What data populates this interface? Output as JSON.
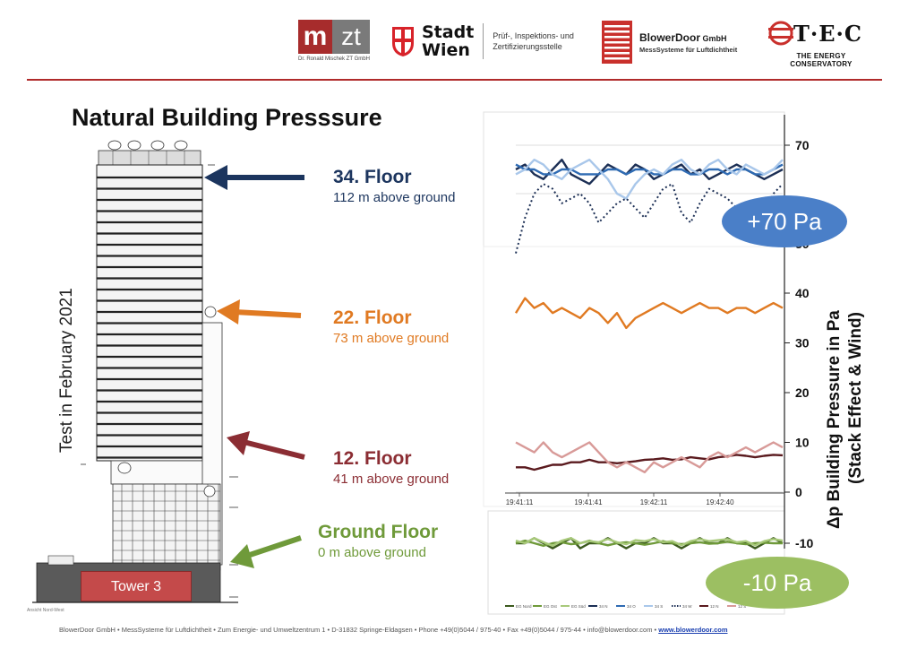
{
  "header": {
    "mzt": {
      "m": "m",
      "zt": "zt",
      "sub": "Dr. Ronald Mischek ZT GmbH"
    },
    "wien": {
      "line1": "Stadt",
      "line2": "Wien",
      "desc1": "Prüf-, Inspektions- und",
      "desc2": "Zertifizierungsstelle"
    },
    "blowerdoor": {
      "name": "BlowerDoor",
      "gmbh": " GmbH",
      "sub": "MessSysteme für Luftdichtheit"
    },
    "tec": {
      "letters": "T·E·C",
      "sub": "THE ENERGY CONSERVATORY"
    }
  },
  "title": "Natural Building Presssure",
  "side_label": "Test in February 2021",
  "tower_label": "Tower 3",
  "tower_caption": "Ansicht Nord-West",
  "floors": [
    {
      "name": "34. Floor",
      "height": "112 m above ground",
      "color": "#1c355e"
    },
    {
      "name": "22. Floor",
      "height": "73 m above ground",
      "color": "#e07a22"
    },
    {
      "name": "12. Floor",
      "height": "41 m above ground",
      "color": "#8b2d33"
    },
    {
      "name": "Ground Floor",
      "height": "0 m above ground",
      "color": "#6f9a3a"
    }
  ],
  "callouts": {
    "top": "+70 Pa",
    "bottom": "-10 Pa"
  },
  "footer": {
    "text": "BlowerDoor GmbH • MessSysteme für Luftdichtheit • Zum Energie- und Umweltzentrum 1 • D-31832 Springe-Eldagsen • Phone +49(0)5044 / 975-40 • Fax +49(0)5044 / 975-44 • info@blowerdoor.com •",
    "link": "www.blowerdoor.com"
  },
  "chart_data": {
    "type": "line",
    "ylabel_line1": "Δp Building Pressure  in Pa",
    "ylabel_line2": "(Stack Effect & Wind)",
    "ylim": [
      -10,
      70
    ],
    "yticks": [
      "70",
      "40",
      "30",
      "20",
      "10",
      "0",
      "-10"
    ],
    "yticks_visible_partial": "50",
    "xticks": [
      "19:41:11",
      "19:41:41",
      "19:42:11",
      "19:42:40"
    ],
    "legend": [
      "EG Nord",
      "EG Ost",
      "EG Süd",
      "34 N",
      "34 O",
      "34 S",
      "34 W",
      "12 N",
      "12 S",
      "22 S"
    ],
    "series": [
      {
        "name": "34 N",
        "color": "#1c2f55",
        "style": "solid",
        "values": [
          65,
          66,
          64,
          63,
          65,
          67,
          64,
          63,
          62,
          64,
          66,
          65,
          64,
          66,
          65,
          63,
          64,
          65,
          66,
          64,
          65,
          63,
          64,
          65,
          66,
          65,
          64,
          63,
          64,
          65
        ]
      },
      {
        "name": "34 O",
        "color": "#2f6bb3",
        "style": "solid",
        "values": [
          66,
          65,
          65,
          64,
          64,
          65,
          65,
          64,
          64,
          64,
          65,
          65,
          64,
          65,
          65,
          64,
          64,
          65,
          65,
          64,
          64,
          65,
          65,
          64,
          65,
          65,
          64,
          64,
          65,
          66
        ]
      },
      {
        "name": "34 S",
        "color": "#a9c7ea",
        "style": "solid",
        "values": [
          64,
          65,
          67,
          66,
          64,
          63,
          65,
          66,
          67,
          65,
          63,
          60,
          59,
          62,
          64,
          65,
          64,
          66,
          67,
          65,
          64,
          66,
          67,
          65,
          64,
          66,
          65,
          64,
          65,
          67
        ]
      },
      {
        "name": "34 W",
        "color": "#1c2f55",
        "style": "dotted",
        "values": [
          48,
          55,
          60,
          62,
          61,
          58,
          59,
          60,
          58,
          54,
          56,
          58,
          59,
          57,
          55,
          58,
          61,
          62,
          56,
          54,
          58,
          61,
          60,
          59,
          57,
          58,
          55,
          56,
          60,
          62
        ]
      },
      {
        "name": "22 S",
        "color": "#e07a22",
        "style": "solid",
        "values": [
          36,
          39,
          37,
          38,
          36,
          37,
          36,
          35,
          37,
          36,
          34,
          36,
          33,
          35,
          36,
          37,
          38,
          37,
          36,
          37,
          38,
          37,
          37,
          36,
          37,
          37,
          36,
          37,
          38,
          37
        ]
      },
      {
        "name": "12 N",
        "color": "#5a1a1e",
        "style": "solid",
        "values": [
          5,
          5,
          4.5,
          5,
          5.5,
          5.5,
          6,
          6,
          6.5,
          6,
          6,
          5.8,
          6,
          6.2,
          6.5,
          6.6,
          6.8,
          6.5,
          6.6,
          7,
          6.8,
          6.6,
          7,
          7.2,
          7.5,
          7.3,
          7,
          7.3,
          7.5,
          7.4
        ]
      },
      {
        "name": "12 S",
        "color": "#d89a98",
        "style": "solid",
        "values": [
          10,
          9,
          8,
          10,
          8,
          7,
          8,
          9,
          10,
          8,
          6,
          5,
          6,
          5,
          4,
          6,
          5,
          6,
          7,
          6,
          5,
          7,
          8,
          7,
          8,
          9,
          8,
          9,
          10,
          9
        ]
      },
      {
        "name": "EG Nord",
        "color": "#3c5a1e",
        "style": "solid",
        "values": [
          -10,
          -10,
          -9,
          -10,
          -11,
          -10,
          -9,
          -11,
          -10,
          -10,
          -9,
          -10,
          -11,
          -10,
          -10,
          -9,
          -10,
          -10,
          -11,
          -10,
          -9,
          -10,
          -10,
          -9,
          -10,
          -10,
          -11,
          -10,
          -9,
          -10
        ]
      },
      {
        "name": "EG Ost",
        "color": "#6f9a3a",
        "style": "solid",
        "values": [
          -10,
          -9.5,
          -10,
          -10.5,
          -10,
          -9.8,
          -10.2,
          -10,
          -9.5,
          -10,
          -10.4,
          -10,
          -9.8,
          -10,
          -10.3,
          -10,
          -9.6,
          -10,
          -10.2,
          -10,
          -9.8,
          -10.1,
          -10,
          -9.7,
          -10,
          -10.2,
          -10,
          -9.9,
          -10,
          -10
        ]
      },
      {
        "name": "EG Süd",
        "color": "#a8c97a",
        "style": "solid",
        "values": [
          -9.5,
          -10,
          -9,
          -9.8,
          -10.5,
          -9.5,
          -9,
          -10,
          -9.6,
          -9.8,
          -9.2,
          -9.8,
          -10.2,
          -9.4,
          -9.6,
          -9.2,
          -9.8,
          -9.6,
          -10.4,
          -9.6,
          -9.2,
          -9.6,
          -9.4,
          -9.2,
          -9.8,
          -9.6,
          -10.4,
          -9.6,
          -9.2,
          -9.5
        ]
      }
    ]
  }
}
